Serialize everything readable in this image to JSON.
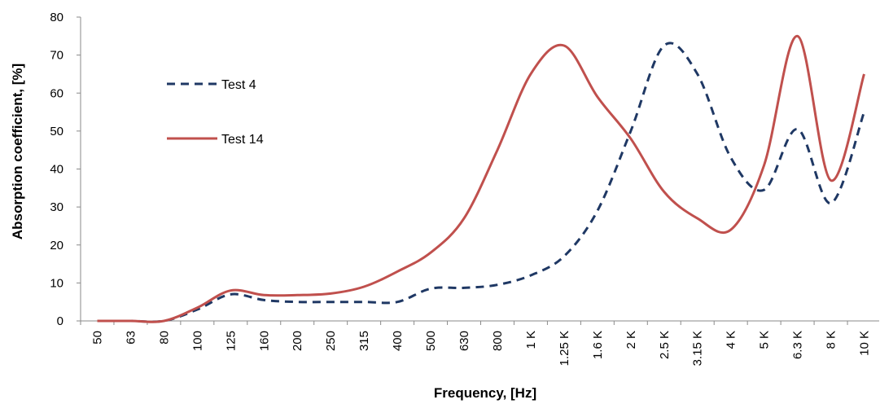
{
  "chart_data": {
    "type": "line",
    "title": "",
    "xlabel": "Frequency, [Hz]",
    "ylabel": "Absorption coefficient, [%]",
    "ylim": [
      0,
      80
    ],
    "yticks": [
      "0",
      "10",
      "20",
      "30",
      "40",
      "50",
      "60",
      "70",
      "80"
    ],
    "grid": false,
    "legend_position": "upper-left",
    "categories": [
      "50",
      "63",
      "80",
      "100",
      "125",
      "160",
      "200",
      "250",
      "315",
      "400",
      "500",
      "630",
      "800",
      "1 K",
      "1.25 K",
      "1.6 K",
      "2 K",
      "2.5 K",
      "3.15 K",
      "4 K",
      "5 K",
      "6.3 K",
      "8 K",
      "10 K"
    ],
    "series": [
      {
        "name": "Test  4",
        "style": "dashed",
        "color": "#1F3864",
        "values": [
          0,
          0,
          0,
          3,
          7,
          5.5,
          5,
          5,
          5,
          5,
          8.5,
          8.7,
          9.5,
          12,
          17,
          29,
          50,
          72.5,
          65,
          43,
          34.5,
          50.5,
          31,
          55
        ]
      },
      {
        "name": "Test 14",
        "style": "solid",
        "color": "#C0504D",
        "values": [
          0,
          0,
          0,
          3.5,
          8,
          6.8,
          6.8,
          7.2,
          9,
          13,
          18,
          27,
          45,
          65,
          72.5,
          59,
          48,
          34,
          27,
          24,
          41,
          75,
          37,
          65
        ]
      }
    ]
  }
}
